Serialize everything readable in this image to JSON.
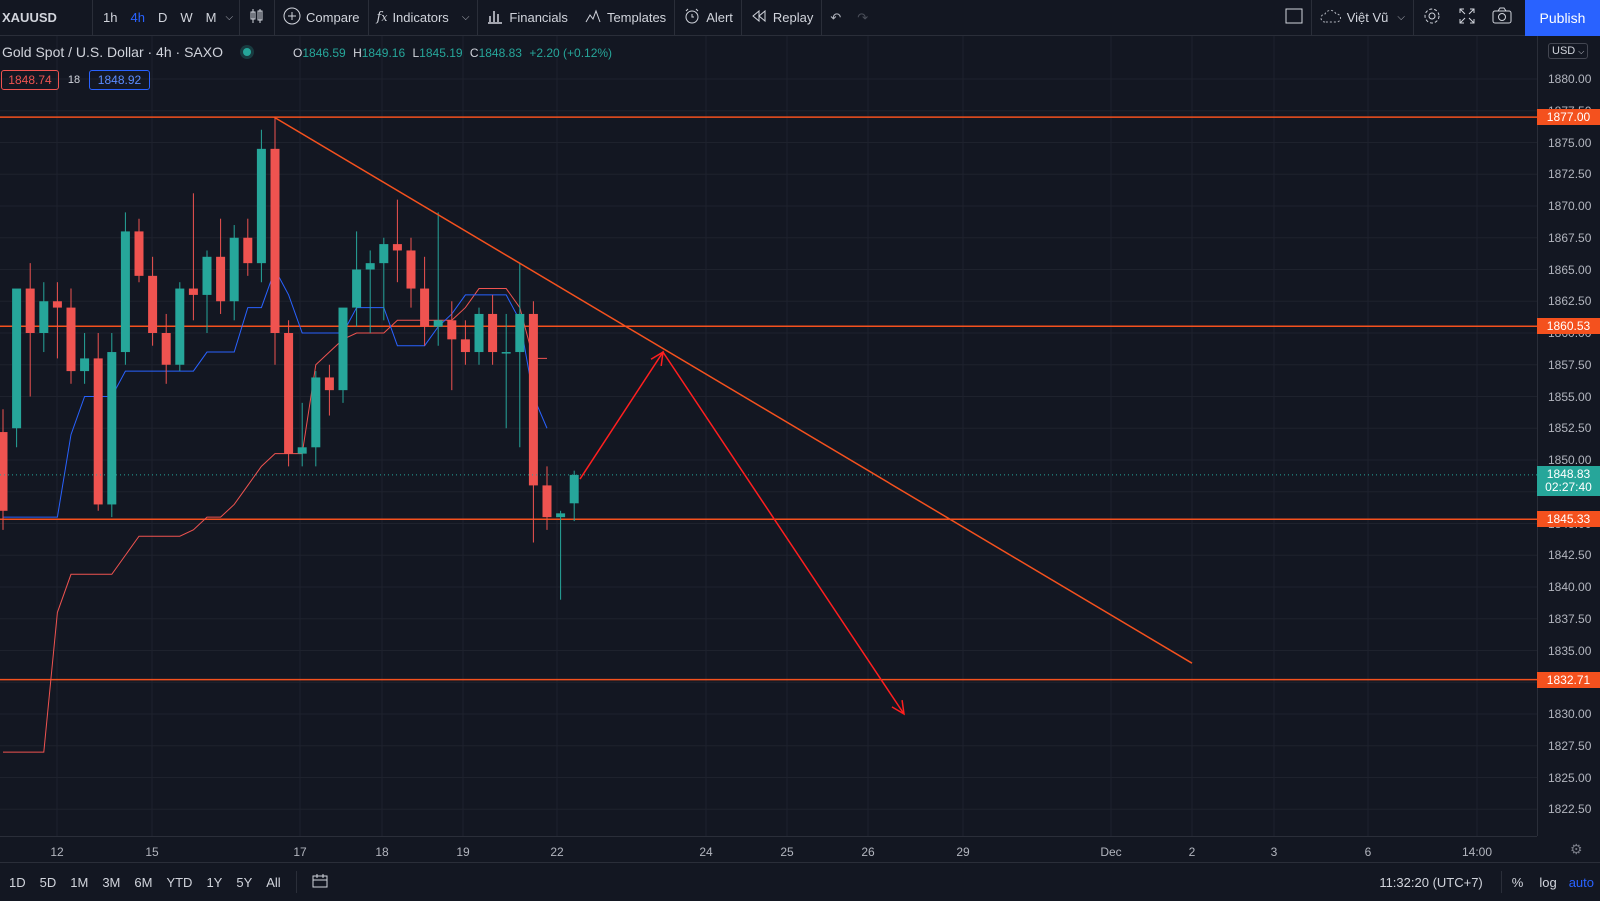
{
  "toolbar": {
    "symbol": "XAUUSD",
    "timeframes": [
      "1h",
      "4h",
      "D",
      "W",
      "M"
    ],
    "active_timeframe": "4h",
    "compare": "Compare",
    "indicators": "Indicators",
    "financials": "Financials",
    "templates": "Templates",
    "alert": "Alert",
    "replay": "Replay",
    "layout_name": "Việt Vũ",
    "publish": "Publish"
  },
  "legend": {
    "title": "Gold Spot / U.S. Dollar · 4h · SAXO",
    "o_label": "O",
    "o": "1846.59",
    "h_label": "H",
    "h": "1849.16",
    "l_label": "L",
    "l": "1845.19",
    "c_label": "C",
    "c": "1848.83",
    "change": "+2.20 (+0.12%)",
    "sell": "1848.74",
    "spread": "18",
    "buy": "1848.92"
  },
  "price_scale": {
    "currency": "USD",
    "ticks": [
      "1880.00",
      "1877.50",
      "1875.00",
      "1872.50",
      "1870.00",
      "1867.50",
      "1865.00",
      "1862.50",
      "1860.00",
      "1857.50",
      "1855.00",
      "1852.50",
      "1850.00",
      "1847.50",
      "1845.00",
      "1842.50",
      "1840.00",
      "1837.50",
      "1835.00",
      "1832.50",
      "1830.00",
      "1827.50",
      "1825.00",
      "1822.50"
    ],
    "tags": [
      {
        "label": "1877.00",
        "value": 1877.0
      },
      {
        "label": "1860.53",
        "value": 1860.53
      },
      {
        "label": "1845.33",
        "value": 1845.33
      },
      {
        "label": "1832.71",
        "value": 1832.71
      }
    ],
    "last_price": "1848.83",
    "countdown": "02:27:40"
  },
  "time_axis": {
    "labels": [
      "12",
      "15",
      "17",
      "18",
      "19",
      "22",
      "24",
      "25",
      "26",
      "29",
      "Dec",
      "2",
      "3",
      "6",
      "14:00"
    ]
  },
  "bottom": {
    "ranges": [
      "1D",
      "5D",
      "1M",
      "3M",
      "6M",
      "YTD",
      "1Y",
      "5Y",
      "All"
    ],
    "clock": "11:32:20 (UTC+7)",
    "percent": "%",
    "log": "log",
    "auto": "auto"
  },
  "colors": {
    "background": "#131722",
    "up": "#26a69a",
    "down": "#ef5350",
    "level_line": "#f4511e",
    "drawing": "#ff1f1f",
    "ma_fast": "#2962ff",
    "accent": "#2962ff"
  },
  "chart_data": {
    "type": "candlestick",
    "symbol": "XAUUSD",
    "interval": "4h",
    "ylim": [
      1821,
      1883
    ],
    "horizontal_levels": [
      1877.0,
      1860.53,
      1845.33,
      1832.71
    ],
    "candles": [
      {
        "o": 1852.2,
        "h": 1854.0,
        "l": 1844.5,
        "c": 1846.0
      },
      {
        "o": 1852.5,
        "h": 1863.0,
        "l": 1851.0,
        "c": 1863.5
      },
      {
        "o": 1863.5,
        "h": 1865.5,
        "l": 1855.0,
        "c": 1860.0
      },
      {
        "o": 1860.0,
        "h": 1864.0,
        "l": 1858.5,
        "c": 1862.5
      },
      {
        "o": 1862.5,
        "h": 1864.0,
        "l": 1858.0,
        "c": 1862.0
      },
      {
        "o": 1862.0,
        "h": 1863.5,
        "l": 1856.0,
        "c": 1857.0
      },
      {
        "o": 1857.0,
        "h": 1860.0,
        "l": 1856.0,
        "c": 1858.0
      },
      {
        "o": 1858.0,
        "h": 1860.0,
        "l": 1846.0,
        "c": 1846.5
      },
      {
        "o": 1846.5,
        "h": 1860.0,
        "l": 1845.5,
        "c": 1858.5
      },
      {
        "o": 1858.5,
        "h": 1869.5,
        "l": 1857.5,
        "c": 1868.0
      },
      {
        "o": 1868.0,
        "h": 1869.0,
        "l": 1864.0,
        "c": 1864.5
      },
      {
        "o": 1864.5,
        "h": 1866.0,
        "l": 1859.0,
        "c": 1860.0
      },
      {
        "o": 1860.0,
        "h": 1861.5,
        "l": 1856.0,
        "c": 1857.5
      },
      {
        "o": 1857.5,
        "h": 1864.0,
        "l": 1857.0,
        "c": 1863.5
      },
      {
        "o": 1863.5,
        "h": 1871.0,
        "l": 1861.0,
        "c": 1863.0
      },
      {
        "o": 1863.0,
        "h": 1866.5,
        "l": 1860.0,
        "c": 1866.0
      },
      {
        "o": 1866.0,
        "h": 1869.0,
        "l": 1861.5,
        "c": 1862.5
      },
      {
        "o": 1862.5,
        "h": 1868.5,
        "l": 1861.0,
        "c": 1867.5
      },
      {
        "o": 1867.5,
        "h": 1869.0,
        "l": 1864.5,
        "c": 1865.5
      },
      {
        "o": 1865.5,
        "h": 1876.0,
        "l": 1864.0,
        "c": 1874.5
      },
      {
        "o": 1874.5,
        "h": 1877.0,
        "l": 1857.5,
        "c": 1860.0
      },
      {
        "o": 1860.0,
        "h": 1861.0,
        "l": 1849.5,
        "c": 1850.5
      },
      {
        "o": 1850.5,
        "h": 1854.5,
        "l": 1849.5,
        "c": 1851.0
      },
      {
        "o": 1851.0,
        "h": 1857.0,
        "l": 1849.5,
        "c": 1856.5
      },
      {
        "o": 1856.5,
        "h": 1857.5,
        "l": 1853.5,
        "c": 1855.5
      },
      {
        "o": 1855.5,
        "h": 1861.5,
        "l": 1854.5,
        "c": 1862.0
      },
      {
        "o": 1862.0,
        "h": 1868.0,
        "l": 1860.5,
        "c": 1865.0
      },
      {
        "o": 1865.0,
        "h": 1866.5,
        "l": 1860.0,
        "c": 1865.5
      },
      {
        "o": 1865.5,
        "h": 1867.5,
        "l": 1861.0,
        "c": 1867.0
      },
      {
        "o": 1867.0,
        "h": 1870.5,
        "l": 1864.0,
        "c": 1866.5
      },
      {
        "o": 1866.5,
        "h": 1867.5,
        "l": 1862.0,
        "c": 1863.5
      },
      {
        "o": 1863.5,
        "h": 1866.0,
        "l": 1859.0,
        "c": 1860.5
      },
      {
        "o": 1860.5,
        "h": 1869.5,
        "l": 1859.0,
        "c": 1861.0
      },
      {
        "o": 1861.0,
        "h": 1862.5,
        "l": 1855.5,
        "c": 1859.5
      },
      {
        "o": 1859.5,
        "h": 1861.0,
        "l": 1857.5,
        "c": 1858.5
      },
      {
        "o": 1858.5,
        "h": 1862.0,
        "l": 1857.5,
        "c": 1861.5
      },
      {
        "o": 1861.5,
        "h": 1863.0,
        "l": 1857.5,
        "c": 1858.5
      },
      {
        "o": 1858.5,
        "h": 1861.5,
        "l": 1852.5,
        "c": 1858.5
      },
      {
        "o": 1858.5,
        "h": 1865.5,
        "l": 1851.0,
        "c": 1861.5
      },
      {
        "o": 1861.5,
        "h": 1862.5,
        "l": 1843.5,
        "c": 1848.0
      },
      {
        "o": 1848.0,
        "h": 1849.5,
        "l": 1844.5,
        "c": 1845.5
      },
      {
        "o": 1845.5,
        "h": 1846.0,
        "l": 1839.0,
        "c": 1845.8
      },
      {
        "o": 1846.59,
        "h": 1849.16,
        "l": 1845.19,
        "c": 1848.83
      }
    ],
    "ma_fast": [
      1845.5,
      1845.5,
      1845.5,
      1845.5,
      1845.5,
      1852.0,
      1855.0,
      1855.0,
      1855.0,
      1857.0,
      1857.0,
      1857.0,
      1857.0,
      1857.0,
      1857.0,
      1858.5,
      1858.5,
      1858.5,
      1862.0,
      1862.0,
      1865.0,
      1863.0,
      1860.0,
      1860.0,
      1860.0,
      1860.0,
      1862.0,
      1862.0,
      1862.0,
      1859.0,
      1859.0,
      1859.0,
      1860.5,
      1861.5,
      1863.0,
      1863.0,
      1863.0,
      1863.0,
      1861.0,
      1855.0,
      1852.5
    ],
    "ma_slow": [
      1827.0,
      1827.0,
      1827.0,
      1827.0,
      1838.0,
      1841.0,
      1841.0,
      1841.0,
      1841.0,
      1842.5,
      1844.0,
      1844.0,
      1844.0,
      1844.0,
      1844.5,
      1845.5,
      1845.5,
      1846.5,
      1848.0,
      1849.5,
      1850.5,
      1850.5,
      1850.5,
      1857.5,
      1858.5,
      1859.5,
      1860.0,
      1860.0,
      1860.0,
      1861.0,
      1861.0,
      1861.0,
      1861.0,
      1861.0,
      1862.0,
      1863.5,
      1863.5,
      1863.5,
      1862.0,
      1858.0,
      1858.0
    ],
    "drawings": {
      "trendline": [
        {
          "x": "17",
          "y": 1877.0
        },
        {
          "x": "2",
          "y": 1834.0
        }
      ],
      "path_up": [
        {
          "y": 1848.5
        },
        {
          "y": 1858.5
        }
      ],
      "path_down": [
        {
          "y": 1858.5
        },
        {
          "y": 1830.0
        }
      ]
    }
  }
}
